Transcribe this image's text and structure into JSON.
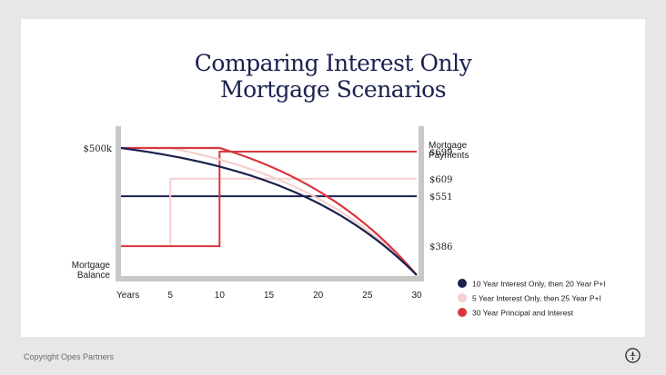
{
  "footer": {
    "copyright": "Copyright Opes Partners"
  },
  "logo_icon": "opes-partners-logo-icon",
  "colors": {
    "background": "#e7e7e7",
    "navy": "#1b2150",
    "pink": "#f6cfcf",
    "red": "#d7373f",
    "axis": "#c8c8c8"
  },
  "chart_data": {
    "type": "line",
    "title": [
      "Comparing Interest Only",
      "Mortgage Scenarios"
    ],
    "xlabel": "Years",
    "ylabel_left": [
      "Mortgage",
      "Balance"
    ],
    "ylabel_right": [
      "Mortgage",
      "Payments"
    ],
    "xlim": [
      0,
      30
    ],
    "x_ticks": [
      5,
      10,
      15,
      20,
      25,
      30
    ],
    "balance_ylim": [
      0,
      500
    ],
    "balance_tick_labels": [
      {
        "value": 500,
        "label": "$500k"
      }
    ],
    "payment_ylim": [
      290,
      780
    ],
    "payment_tick_labels": [
      {
        "value": 699,
        "label": "$699"
      },
      {
        "value": 609,
        "label": "$609"
      },
      {
        "value": 551,
        "label": "$551"
      },
      {
        "value": 386,
        "label": "$386"
      }
    ],
    "legend_position": "bottom-right",
    "series": [
      {
        "name": "10 Year Interest Only, then 20 Year P+I",
        "color": "#1b2150",
        "interest_only_years": 10,
        "balance_plot_start_year": 0,
        "payments": [
          {
            "from": 0,
            "to": 30,
            "value": 551
          }
        ]
      },
      {
        "name": "5 Year Interest Only, then 25 Year P+I",
        "color": "#f6cfcf",
        "interest_only_years": 5,
        "balance_plot_start_year": 5,
        "payments": [
          {
            "from": 4,
            "to": 5,
            "value": 386
          },
          {
            "from": 5,
            "to": 30,
            "value": 609
          }
        ]
      },
      {
        "name": "30 Year Principal and Interest",
        "color": "#d7373f",
        "interest_only_years": 10,
        "balance_plot_start_year": 10,
        "payments": [
          {
            "from": 0,
            "to": 10,
            "value": 386
          },
          {
            "from": 10,
            "to": 30,
            "value": 699
          }
        ]
      }
    ]
  }
}
